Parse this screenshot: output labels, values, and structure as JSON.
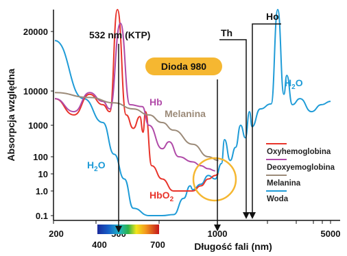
{
  "chart_data": {
    "type": "line",
    "xlabel": "Długość fali (nm)",
    "ylabel": "Absorpcja względna",
    "x_ticks": [
      "200",
      "500",
      "1000",
      "5000"
    ],
    "y_ticks": [
      "20000",
      "10000",
      "1000",
      "100",
      "10",
      "1.0",
      "0.1"
    ],
    "spectrum_labels": [
      "400",
      "700"
    ],
    "annotations": {
      "ktp": "532 nm (KTP)",
      "diode": "Dioda 980",
      "th": "Th",
      "ho": "Ho"
    },
    "curve_labels": {
      "h2o_left": "H",
      "h2o_left_sub": "2",
      "h2o_left_end": "O",
      "h2o_right": "H",
      "h2o_right_sub": "2",
      "h2o_right_end": "O",
      "hb": "Hb",
      "melanin": "Melanina",
      "hbo2": "HbO",
      "hbo2_sub": "2"
    },
    "legend": [
      "Oxyhemoglobina",
      "Deoxyemoglobina",
      "Melanina",
      "Woda"
    ],
    "colors": {
      "water": "#1e9bd7",
      "oxy": "#e8332a",
      "deoxy": "#b04aa8",
      "melanin": "#9b8a78",
      "diode_badge": "#f5b731",
      "circle": "#f5b731"
    },
    "series": [
      {
        "name": "Woda",
        "points": [
          [
            200,
            18000
          ],
          [
            280,
            6000
          ],
          [
            350,
            1200
          ],
          [
            400,
            120
          ],
          [
            450,
            5
          ],
          [
            500,
            0.2
          ],
          [
            600,
            0.1
          ],
          [
            700,
            0.1
          ],
          [
            800,
            0.11
          ],
          [
            900,
            0.5
          ],
          [
            970,
            2
          ],
          [
            1000,
            1.2
          ],
          [
            1100,
            2.5
          ],
          [
            1200,
            8
          ],
          [
            1300,
            5
          ],
          [
            1400,
            40
          ],
          [
            1450,
            350
          ],
          [
            1550,
            60
          ],
          [
            1650,
            200
          ],
          [
            1750,
            1000
          ],
          [
            1850,
            400
          ],
          [
            1940,
            2500
          ],
          [
            2000,
            900
          ],
          [
            2200,
            3000
          ],
          [
            2500,
            4200
          ],
          [
            2700,
            30000
          ],
          [
            2900,
            8000
          ],
          [
            3000,
            12000
          ],
          [
            3200,
            4000
          ],
          [
            3500,
            6000
          ],
          [
            4000,
            2500
          ],
          [
            4500,
            4000
          ],
          [
            5000,
            5000
          ]
        ]
      },
      {
        "name": "Oxyhemoglobina",
        "points": [
          [
            200,
            6000
          ],
          [
            250,
            2000
          ],
          [
            300,
            8000
          ],
          [
            350,
            4000
          ],
          [
            380,
            2500
          ],
          [
            415,
            30000
          ],
          [
            460,
            2000
          ],
          [
            500,
            800
          ],
          [
            540,
            1800
          ],
          [
            560,
            600
          ],
          [
            576,
            2500
          ],
          [
            620,
            30
          ],
          [
            700,
            5
          ],
          [
            800,
            1.0
          ],
          [
            900,
            1.0
          ],
          [
            1000,
            1.0
          ],
          [
            1100,
            2
          ],
          [
            1200,
            5
          ],
          [
            1300,
            8
          ],
          [
            1350,
            10
          ]
        ]
      },
      {
        "name": "Deoxyemoglobina",
        "points": [
          [
            200,
            6000
          ],
          [
            250,
            2500
          ],
          [
            300,
            9000
          ],
          [
            350,
            5000
          ],
          [
            380,
            3000
          ],
          [
            430,
            22000
          ],
          [
            480,
            4000
          ],
          [
            555,
            3500
          ],
          [
            600,
            1000
          ],
          [
            700,
            180
          ],
          [
            760,
            300
          ],
          [
            850,
            100
          ],
          [
            1000,
            50
          ],
          [
            1100,
            30
          ],
          [
            1200,
            20
          ],
          [
            1300,
            15
          ]
        ]
      },
      {
        "name": "Melanina",
        "points": [
          [
            200,
            9000
          ],
          [
            300,
            6500
          ],
          [
            400,
            4500
          ],
          [
            500,
            3000
          ],
          [
            600,
            2000
          ],
          [
            700,
            1200
          ],
          [
            800,
            700
          ],
          [
            1000,
            250
          ],
          [
            1200,
            100
          ],
          [
            1350,
            60
          ]
        ]
      }
    ]
  }
}
